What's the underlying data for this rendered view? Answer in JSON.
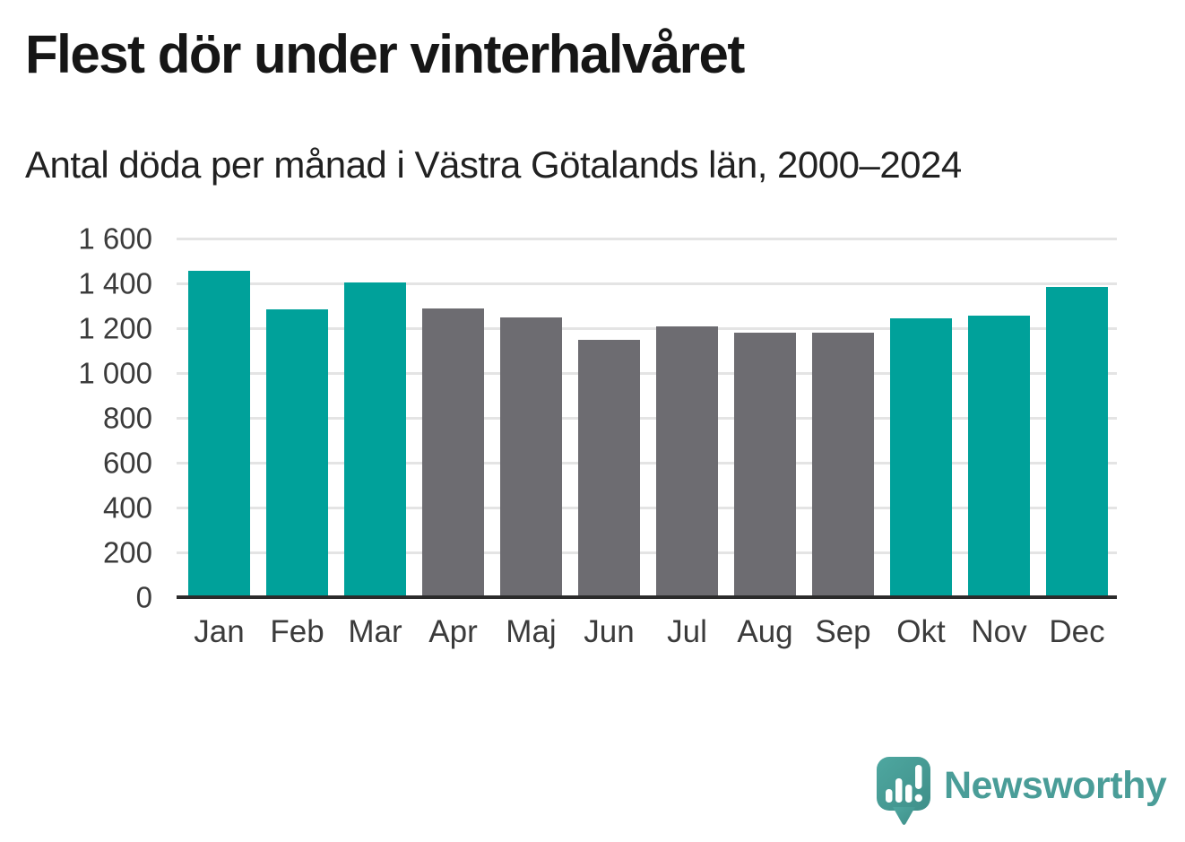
{
  "header": {
    "title": "Flest dör under vinterhalvåret",
    "subtitle": "Antal döda per månad i Västra Götalands län, 2000–2024"
  },
  "chart_data": {
    "type": "bar",
    "title": "Flest dör under vinterhalvåret",
    "subtitle": "Antal döda per månad i Västra Götalands län, 2000–2024",
    "categories": [
      "Jan",
      "Feb",
      "Mar",
      "Apr",
      "Maj",
      "Jun",
      "Jul",
      "Aug",
      "Sep",
      "Okt",
      "Nov",
      "Dec"
    ],
    "values": [
      1455,
      1285,
      1405,
      1290,
      1250,
      1150,
      1210,
      1180,
      1180,
      1245,
      1255,
      1385
    ],
    "bar_roles": [
      "winter",
      "winter",
      "winter",
      "summer",
      "summer",
      "summer",
      "summer",
      "summer",
      "summer",
      "winter",
      "winter",
      "winter"
    ],
    "colors": {
      "winter": "#00a19a",
      "summer": "#6d6c71"
    },
    "xlabel": "",
    "ylabel": "",
    "ylim": [
      0,
      1600
    ],
    "ytick_interval": 200,
    "ytick_labels": [
      "0",
      "200",
      "400",
      "600",
      "800",
      "1 000",
      "1 200",
      "1 400",
      "1 600"
    ],
    "grid": true,
    "legend": false,
    "gridline_color": "#e4e4e4",
    "baseline_color": "#2b2b2b"
  },
  "footer": {
    "brand": "Newsworthy",
    "brand_color": "#4a9d98",
    "logo_gradient_start": "#4ea7a0",
    "logo_gradient_end": "#3f8f89"
  }
}
